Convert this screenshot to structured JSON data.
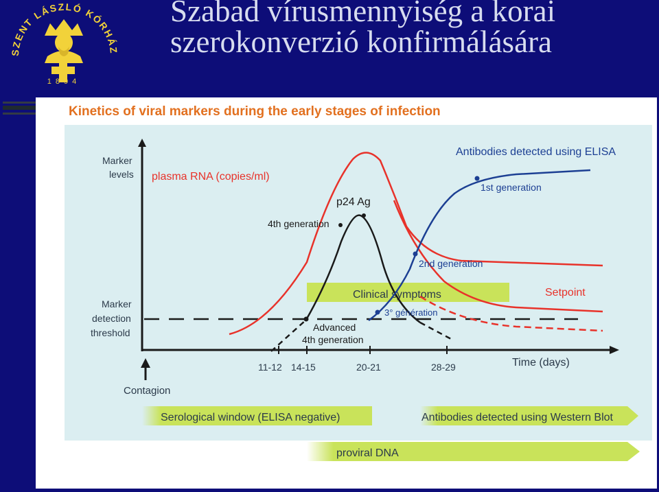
{
  "logo": {
    "text_top": "SZENT LÁSZLÓ KÓRHÁZ",
    "year": "1894"
  },
  "title": {
    "line1": "Szabad vírusmennyiség a korai",
    "line2": "szerokonverzió konfirmálására"
  },
  "figure": {
    "heading": "Kinetics of viral markers during the early stages of infection",
    "y_axis_label_1": "Marker",
    "y_axis_label_2": "levels",
    "threshold_label_1": "Marker",
    "threshold_label_2": "detection",
    "threshold_label_3": "threshold",
    "x_axis_label": "Time (days)",
    "contagion_label": "Contagion",
    "ticks": [
      "11-12",
      "14-15",
      "20-21",
      "28-29"
    ],
    "labels": {
      "plasma_rna": "plasma RNA (copies/ml)",
      "p24": "p24 Ag",
      "gen4": "4th generation",
      "antibodies_elisa": "Antibodies detected using ELISA",
      "gen1": "1st generation",
      "gen2": "2nd generation",
      "setpoint": "Setpoint",
      "clinical": "Clinical symptoms",
      "gen3": "3° génération",
      "advanced_1": "Advanced",
      "advanced_2": "4th generation"
    },
    "bars": {
      "serological": "Serological window (ELISA negative)",
      "western_blot": "Antibodies detected using Western Blot",
      "proviral": "proviral DNA"
    }
  },
  "colors": {
    "background": "#0d0d78",
    "title": "#d7dcef",
    "plot_area": "#dbeef1",
    "heading": "#e2701f",
    "red_curve": "#e8322a",
    "blue_curve": "#1c3f93",
    "black_curve": "#1a1a1a",
    "green_band": "#c9e35a",
    "label_blue": "#1c3f93",
    "label_red": "#e8322a"
  }
}
